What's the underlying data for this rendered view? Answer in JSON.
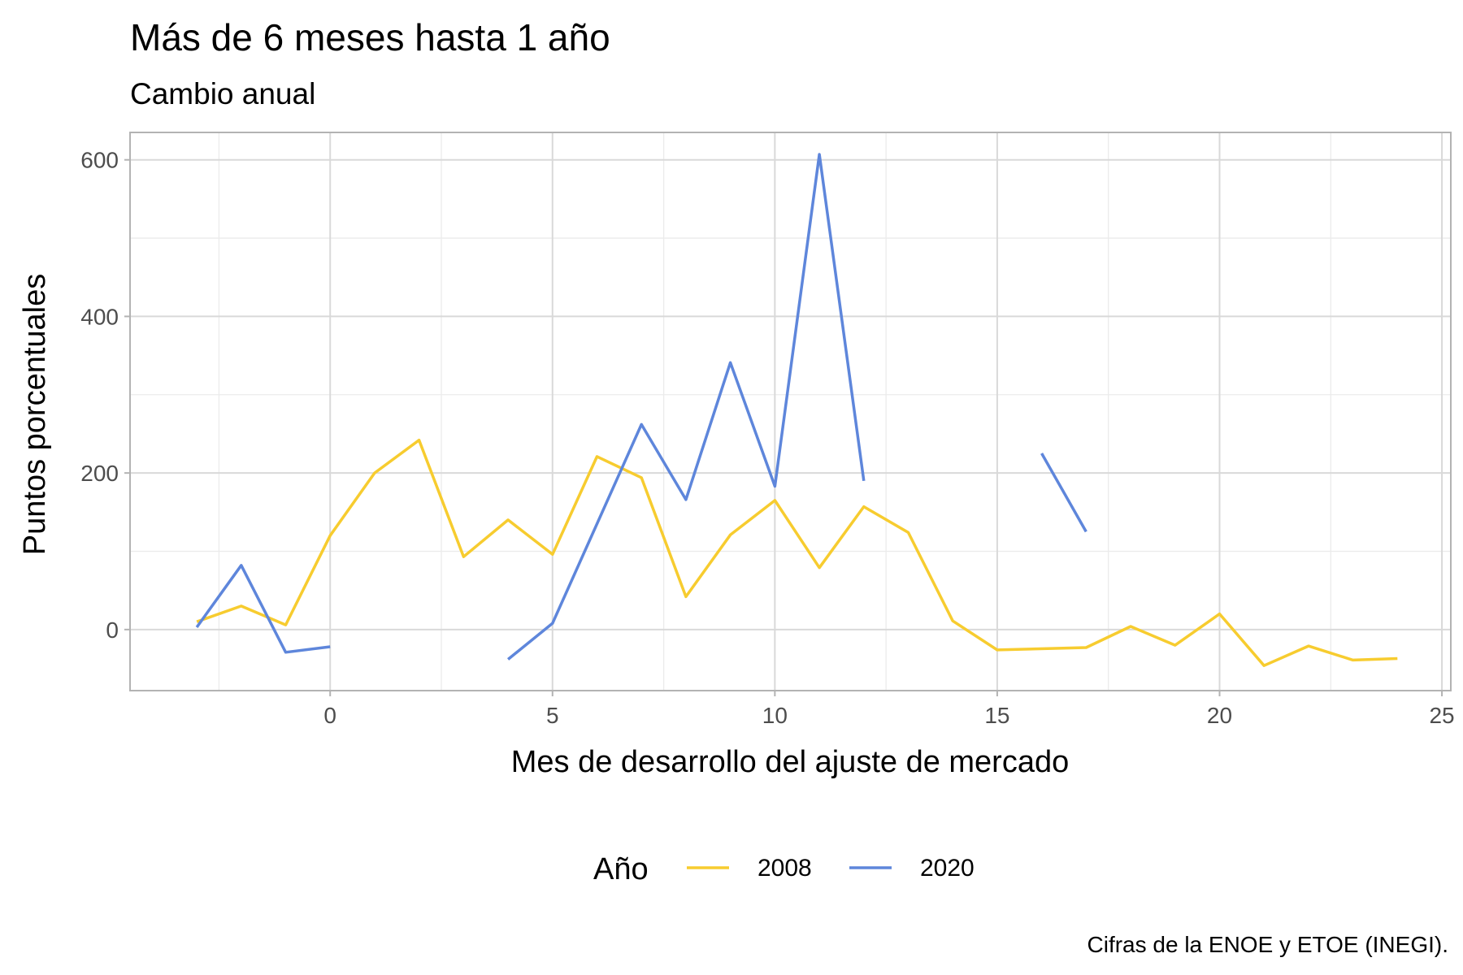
{
  "chart_data": {
    "type": "line",
    "title": "Más de 6 meses hasta 1 año",
    "subtitle": "Cambio anual",
    "xlabel": "Mes de desarrollo del ajuste de mercado",
    "ylabel": "Puntos porcentuales",
    "caption": "Cifras de la ENOE y ETOE (INEGI).",
    "xlim": [
      -4.5,
      25.2
    ],
    "ylim": [
      -78,
      635
    ],
    "x_ticks": [
      0,
      5,
      10,
      15,
      20,
      25
    ],
    "x_tick_labels": [
      "0",
      "5",
      "10",
      "15",
      "20",
      "25"
    ],
    "y_ticks": [
      0,
      200,
      400,
      600
    ],
    "y_tick_labels": [
      "0",
      "200",
      "400",
      "600"
    ],
    "grid": true,
    "legend": {
      "title": "Año",
      "position": "bottom"
    },
    "series": [
      {
        "name": "2008",
        "color": "#F7CC2F",
        "points": [
          [
            -3,
            10
          ],
          [
            -2,
            30
          ],
          [
            -1,
            6
          ],
          [
            0,
            120
          ],
          [
            1,
            200
          ],
          [
            2,
            242
          ],
          [
            3,
            93
          ],
          [
            4,
            140
          ],
          [
            5,
            96
          ],
          [
            6,
            221
          ],
          [
            7,
            194
          ],
          [
            8,
            42
          ],
          [
            9,
            121
          ],
          [
            10,
            165
          ],
          [
            11,
            79
          ],
          [
            12,
            157
          ],
          [
            13,
            124
          ],
          [
            14,
            11
          ],
          [
            15,
            -26
          ],
          [
            17,
            -23
          ],
          [
            18,
            4
          ],
          [
            19,
            -20
          ],
          [
            20,
            20
          ],
          [
            21,
            -46
          ],
          [
            22,
            -21
          ],
          [
            23,
            -39
          ],
          [
            24,
            -37
          ]
        ]
      },
      {
        "name": "2020",
        "color": "#5E86DB",
        "segments": [
          [
            [
              -3,
              3
            ],
            [
              -2,
              82
            ],
            [
              -1,
              -29
            ],
            [
              0,
              -22
            ]
          ],
          [
            [
              4,
              -38
            ],
            [
              5,
              8
            ],
            [
              7,
              262
            ],
            [
              8,
              166
            ],
            [
              9,
              341
            ],
            [
              10,
              183
            ],
            [
              11,
              607
            ],
            [
              12,
              190
            ]
          ],
          [
            [
              16,
              225
            ],
            [
              17,
              125
            ]
          ]
        ]
      }
    ]
  }
}
